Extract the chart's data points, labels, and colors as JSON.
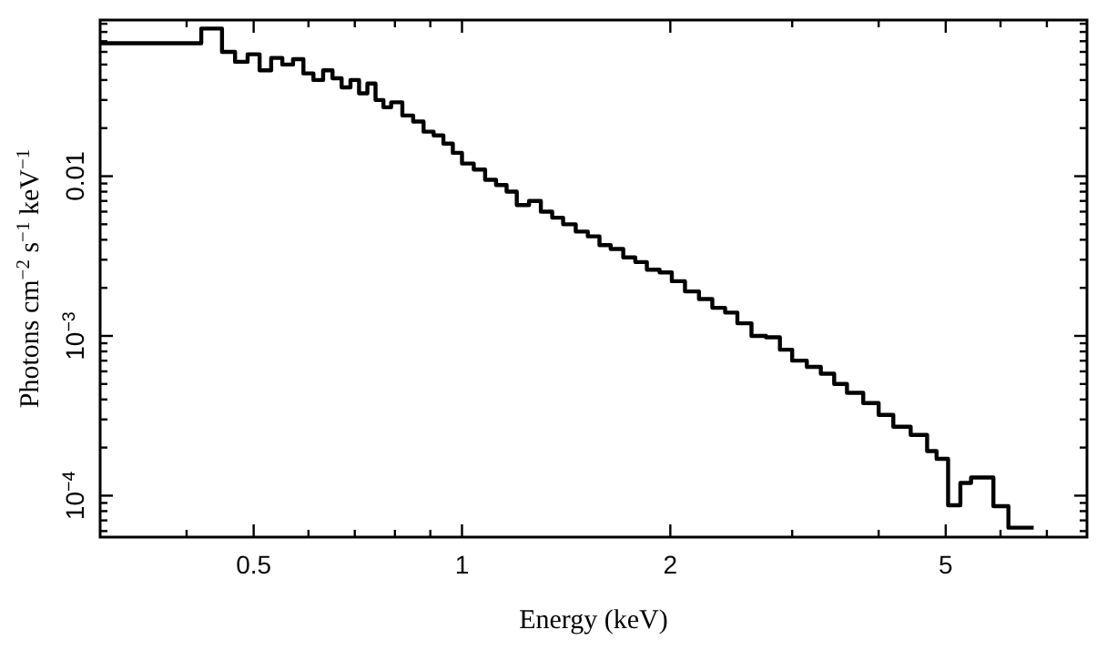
{
  "chart_data": {
    "type": "step",
    "xlabel": "Energy (keV)",
    "ylabel": "Photons cm$^{−2}$ s$^{−1}$ keV$^{−1}$",
    "log": "xy",
    "grid": false,
    "line_style": "solid",
    "xlim": [
      0.3,
      8
    ],
    "ylim": [
      5.5e-05,
      0.095
    ],
    "xticks": [
      {
        "value": 0.4,
        "label": null
      },
      0.5,
      {
        "value": 0.6,
        "label": null
      },
      {
        "value": 0.7,
        "label": null
      },
      {
        "value": 0.8,
        "label": null
      },
      {
        "value": 0.9,
        "label": null
      },
      1,
      2,
      {
        "value": 3,
        "label": null
      },
      {
        "value": 4,
        "label": null
      },
      5,
      {
        "value": 6,
        "label": null
      },
      {
        "value": 7,
        "label": null
      }
    ],
    "yticks": [
      {
        "value": 6e-05,
        "label": null
      },
      {
        "value": 7e-05,
        "label": null
      },
      {
        "value": 8e-05,
        "label": null
      },
      {
        "value": 9e-05,
        "label": null
      },
      {
        "value": 0.0001,
        "label": "10$^{−4}$"
      },
      {
        "value": 0.0002,
        "label": null
      },
      {
        "value": 0.0003,
        "label": null
      },
      {
        "value": 0.0004,
        "label": null
      },
      {
        "value": 0.0005,
        "label": null
      },
      {
        "value": 0.0006,
        "label": null
      },
      {
        "value": 0.0007,
        "label": null
      },
      {
        "value": 0.0008,
        "label": null
      },
      {
        "value": 0.0009,
        "label": null
      },
      {
        "value": 0.001,
        "label": "10$^{−3}$"
      },
      {
        "value": 0.002,
        "label": null
      },
      {
        "value": 0.003,
        "label": null
      },
      {
        "value": 0.004,
        "label": null
      },
      {
        "value": 0.005,
        "label": null
      },
      {
        "value": 0.006,
        "label": null
      },
      {
        "value": 0.007,
        "label": null
      },
      {
        "value": 0.008,
        "label": null
      },
      {
        "value": 0.009,
        "label": null
      },
      {
        "value": 0.01,
        "label": "0.01"
      },
      {
        "value": 0.02,
        "label": null
      },
      {
        "value": 0.03,
        "label": null
      },
      {
        "value": 0.04,
        "label": null
      },
      {
        "value": 0.05,
        "label": null
      },
      {
        "value": 0.06,
        "label": null
      },
      {
        "value": 0.07,
        "label": null
      },
      {
        "value": 0.08,
        "label": null
      },
      {
        "value": 0.09,
        "label": null
      }
    ],
    "series": [
      {
        "color": "#000000",
        "x": [
          0.3,
          0.42,
          0.45,
          0.47,
          0.49,
          0.51,
          0.53,
          0.55,
          0.57,
          0.59,
          0.61,
          0.63,
          0.65,
          0.67,
          0.69,
          0.71,
          0.73,
          0.75,
          0.77,
          0.79,
          0.82,
          0.85,
          0.88,
          0.91,
          0.94,
          0.97,
          1.0,
          1.04,
          1.08,
          1.12,
          1.16,
          1.2,
          1.25,
          1.3,
          1.35,
          1.4,
          1.46,
          1.52,
          1.58,
          1.64,
          1.71,
          1.78,
          1.85,
          1.93,
          2.01,
          2.1,
          2.2,
          2.3,
          2.4,
          2.5,
          2.62,
          2.75,
          2.88,
          3.0,
          3.15,
          3.3,
          3.45,
          3.6,
          3.8,
          4.0,
          4.2,
          4.45,
          4.7,
          4.85,
          5.04,
          5.25,
          5.44,
          5.86,
          6.16,
          6.7
        ],
        "values": [
          0.068,
          0.084,
          0.06,
          0.052,
          0.058,
          0.046,
          0.055,
          0.05,
          0.054,
          0.044,
          0.04,
          0.046,
          0.041,
          0.036,
          0.04,
          0.033,
          0.038,
          0.03,
          0.027,
          0.029,
          0.024,
          0.022,
          0.019,
          0.018,
          0.016,
          0.014,
          0.012,
          0.011,
          0.0095,
          0.0088,
          0.008,
          0.0066,
          0.007,
          0.006,
          0.0055,
          0.005,
          0.0045,
          0.0042,
          0.0037,
          0.0035,
          0.0031,
          0.0029,
          0.0026,
          0.0025,
          0.0022,
          0.0019,
          0.0017,
          0.0015,
          0.0014,
          0.0012,
          0.001,
          0.00098,
          0.00082,
          0.0007,
          0.00064,
          0.00058,
          0.0005,
          0.00044,
          0.00038,
          0.00032,
          0.00027,
          0.00024,
          0.00019,
          0.00017,
          8.7e-05,
          0.00012,
          0.00013,
          8.6e-05,
          6.3e-05,
          6.3e-05
        ]
      }
    ]
  }
}
